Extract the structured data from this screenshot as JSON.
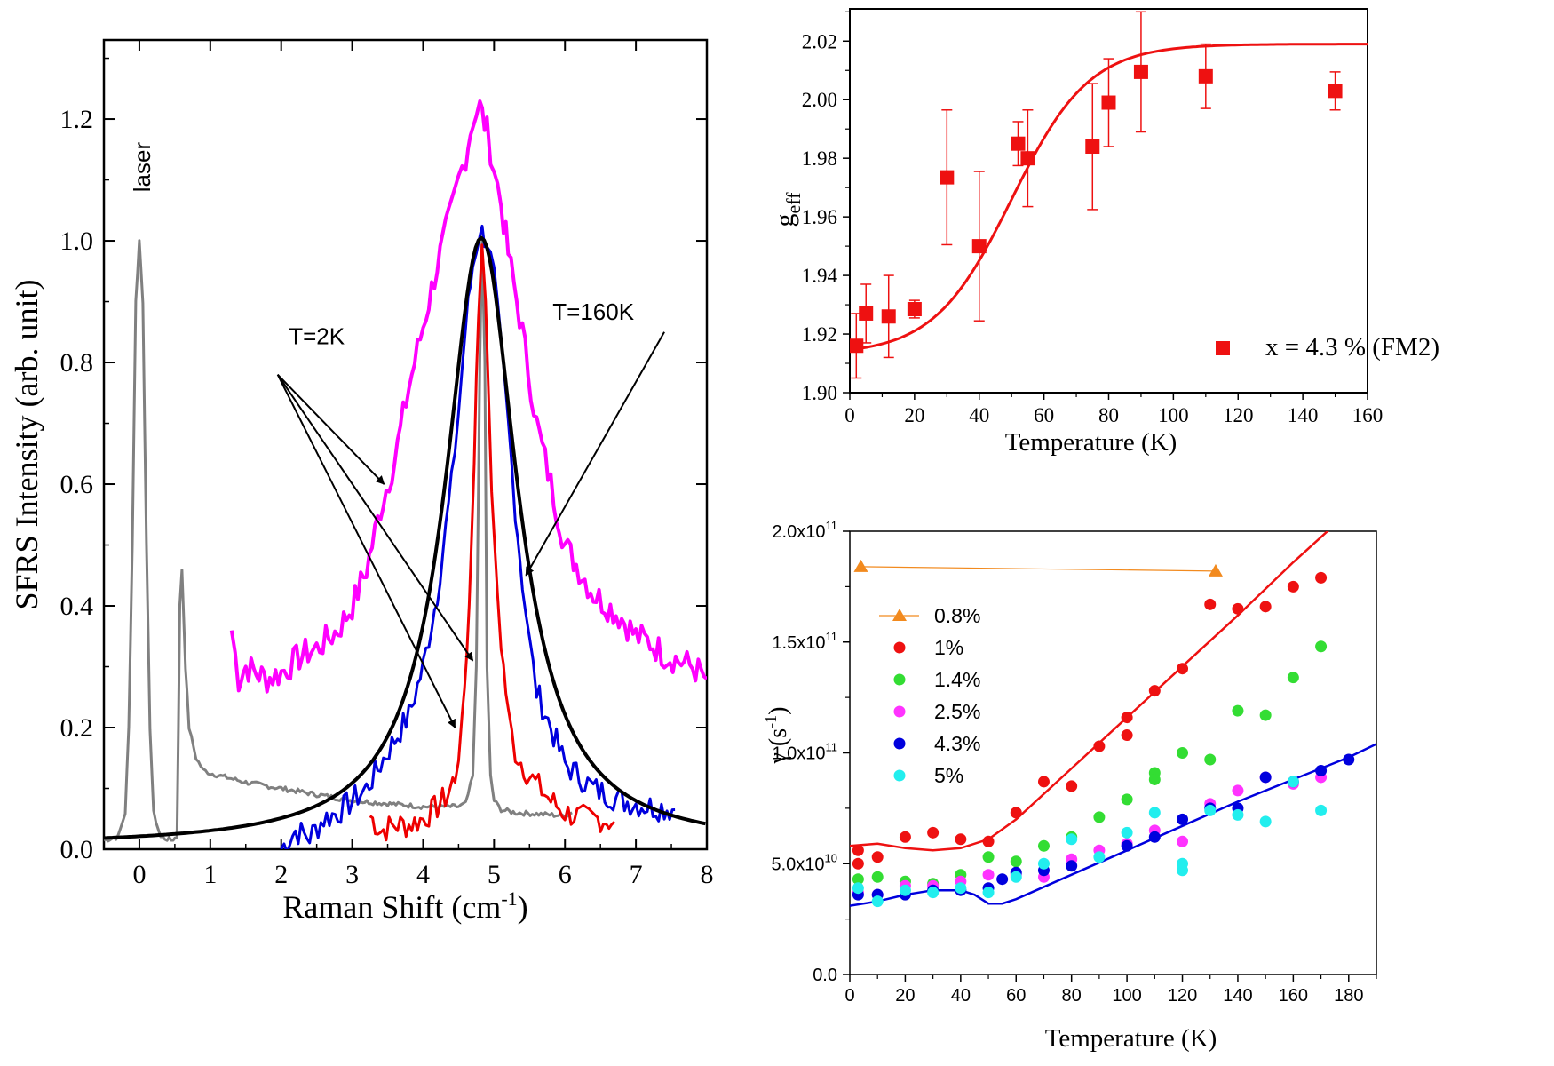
{
  "chart_data": [
    {
      "type": "line",
      "xlabel": "Raman Shift (cm",
      "xlabel_sup": "-1",
      "xlabel_close": ")",
      "ylabel": "SFRS Intensity (arb. unit)",
      "xlim": [
        -0.5,
        8
      ],
      "ylim": [
        0,
        1.33
      ],
      "xticks": [
        "0",
        "1",
        "2",
        "3",
        "4",
        "5",
        "6",
        "7",
        "8"
      ],
      "xtick_values": [
        0,
        1,
        2,
        3,
        4,
        5,
        6,
        7,
        8
      ],
      "yticks": [
        "0.0",
        "0.2",
        "0.4",
        "0.6",
        "0.8",
        "1.0",
        "1.2"
      ],
      "ytick_values": [
        0,
        0.2,
        0.4,
        0.6,
        0.8,
        1.0,
        1.2
      ],
      "annotations": [
        {
          "text": "laser",
          "x": 0.2,
          "y": 1.08,
          "rotate": true
        },
        {
          "text": "T=2K",
          "x": 2.5,
          "y": 0.83
        },
        {
          "text": "T=160K",
          "x": 6.4,
          "y": 0.87
        }
      ],
      "arrows": [
        {
          "from": [
            1.95,
            0.78
          ],
          "to": [
            3.45,
            0.6
          ]
        },
        {
          "from": [
            1.95,
            0.78
          ],
          "to": [
            4.7,
            0.31
          ]
        },
        {
          "from": [
            1.95,
            0.78
          ],
          "to": [
            4.45,
            0.2
          ]
        },
        {
          "from": [
            7.4,
            0.85
          ],
          "to": [
            5.45,
            0.45
          ]
        }
      ],
      "series": [
        {
          "id": "laser",
          "color": "#808080",
          "width": 3,
          "x": [
            -0.5,
            -0.3,
            -0.2,
            -0.15,
            -0.1,
            -0.05,
            0,
            0.05,
            0.1,
            0.15,
            0.2,
            0.3,
            0.45,
            0.53,
            0.55,
            0.57,
            0.6,
            0.65,
            0.7,
            0.8,
            0.9,
            1.0,
            1.5,
            2.0,
            2.5,
            3.0,
            3.5,
            4.0,
            4.3,
            4.5,
            4.6,
            4.7,
            4.75,
            4.8,
            4.83,
            4.87,
            4.9,
            4.95,
            5.0,
            5.1,
            5.3,
            5.6,
            6.0,
            6.1
          ],
          "y": [
            0.015,
            0.02,
            0.06,
            0.2,
            0.5,
            0.9,
            1.0,
            0.9,
            0.5,
            0.2,
            0.06,
            0.02,
            0.015,
            0.02,
            0.2,
            0.4,
            0.46,
            0.3,
            0.2,
            0.15,
            0.13,
            0.125,
            0.11,
            0.1,
            0.09,
            0.08,
            0.075,
            0.07,
            0.07,
            0.07,
            0.075,
            0.12,
            0.3,
            0.8,
            1.0,
            0.8,
            0.3,
            0.12,
            0.08,
            0.065,
            0.06,
            0.058,
            0.055,
            0.06
          ]
        },
        {
          "id": "magenta",
          "color": "#ff00ff",
          "width": 4,
          "x": [
            1.3,
            1.4,
            1.5,
            1.8,
            2.0,
            2.3,
            2.5,
            2.8,
            3.0,
            3.2,
            3.4,
            3.6,
            3.8,
            4.0,
            4.2,
            4.4,
            4.5,
            4.6,
            4.7,
            4.8,
            4.9,
            5.0,
            5.1,
            5.2,
            5.4,
            5.6,
            5.8,
            6.0,
            6.2,
            6.4,
            6.6,
            6.8,
            7.0,
            7.2,
            7.4,
            7.6,
            7.8,
            8.0
          ],
          "y": [
            0.36,
            0.28,
            0.3,
            0.28,
            0.29,
            0.32,
            0.33,
            0.36,
            0.4,
            0.46,
            0.56,
            0.64,
            0.76,
            0.86,
            0.96,
            1.05,
            1.1,
            1.14,
            1.2,
            1.22,
            1.18,
            1.12,
            1.06,
            0.98,
            0.85,
            0.7,
            0.6,
            0.5,
            0.46,
            0.42,
            0.4,
            0.38,
            0.35,
            0.34,
            0.32,
            0.31,
            0.3,
            0.28
          ]
        },
        {
          "id": "blue",
          "color": "#0000dd",
          "width": 3,
          "x": [
            2.0,
            2.2,
            2.4,
            2.6,
            2.8,
            3.0,
            3.2,
            3.4,
            3.6,
            3.8,
            4.0,
            4.2,
            4.4,
            4.5,
            4.6,
            4.7,
            4.8,
            4.9,
            5.0,
            5.1,
            5.2,
            5.3,
            5.4,
            5.5,
            5.6,
            5.8,
            6.0,
            6.2,
            6.4,
            6.6,
            6.8,
            7.0,
            7.2,
            7.4,
            7.55
          ],
          "y": [
            0.0,
            0.03,
            0.02,
            0.05,
            0.06,
            0.08,
            0.1,
            0.14,
            0.18,
            0.22,
            0.3,
            0.42,
            0.6,
            0.72,
            0.86,
            0.96,
            1.02,
            1.0,
            0.94,
            0.82,
            0.7,
            0.56,
            0.44,
            0.34,
            0.26,
            0.2,
            0.14,
            0.12,
            0.1,
            0.09,
            0.08,
            0.075,
            0.07,
            0.068,
            0.065
          ]
        },
        {
          "id": "red",
          "color": "#ee0000",
          "width": 3,
          "x": [
            3.25,
            3.4,
            3.6,
            3.8,
            4.0,
            4.2,
            4.35,
            4.45,
            4.55,
            4.65,
            4.72,
            4.78,
            4.83,
            4.88,
            4.93,
            5.0,
            5.1,
            5.2,
            5.3,
            5.5,
            5.8,
            6.0,
            6.3,
            6.5,
            6.7
          ],
          "y": [
            0.055,
            0.03,
            0.04,
            0.04,
            0.05,
            0.07,
            0.09,
            0.12,
            0.2,
            0.4,
            0.65,
            0.88,
            1.0,
            0.92,
            0.7,
            0.5,
            0.34,
            0.22,
            0.16,
            0.12,
            0.08,
            0.06,
            0.05,
            0.05,
            0.045
          ]
        },
        {
          "id": "fit",
          "color": "#000000",
          "width": 4,
          "lorentz": {
            "x0": 4.82,
            "amp": 1.0,
            "hwhm": 0.62,
            "offset": 0.005,
            "from": -0.5,
            "to": 8
          }
        }
      ]
    },
    {
      "type": "scatter",
      "xlabel": "Temperature (K)",
      "ylabel": "g",
      "ylabel_sub": "eff",
      "xlim": [
        0,
        160
      ],
      "ylim": [
        1.9,
        2.031
      ],
      "xticks": [
        "0",
        "20",
        "40",
        "60",
        "80",
        "100",
        "120",
        "140",
        "160"
      ],
      "xtick_values": [
        0,
        20,
        40,
        60,
        80,
        100,
        120,
        140,
        160
      ],
      "yticks": [
        "1.90",
        "1.92",
        "1.94",
        "1.96",
        "1.98",
        "2.00",
        "2.02"
      ],
      "ytick_values": [
        1.9,
        1.92,
        1.94,
        1.96,
        1.98,
        2.0,
        2.02
      ],
      "legend": "x = 4.3 % (FM2)",
      "color": "#ee1111",
      "points": [
        {
          "x": 2,
          "y": 1.916,
          "err": 0.011
        },
        {
          "x": 5,
          "y": 1.927,
          "err": 0.01
        },
        {
          "x": 12,
          "y": 1.926,
          "err": 0.014
        },
        {
          "x": 20,
          "y": 1.9285,
          "err": 0.003
        },
        {
          "x": 30,
          "y": 1.9735,
          "err": 0.023
        },
        {
          "x": 40,
          "y": 1.95,
          "err": 0.0255
        },
        {
          "x": 52,
          "y": 1.985,
          "err": 0.0075
        },
        {
          "x": 55,
          "y": 1.98,
          "err": 0.0165
        },
        {
          "x": 75,
          "y": 1.984,
          "err": 0.0215
        },
        {
          "x": 80,
          "y": 1.999,
          "err": 0.015
        },
        {
          "x": 90,
          "y": 2.0095,
          "err": 0.0205
        },
        {
          "x": 110,
          "y": 2.008,
          "err": 0.011
        },
        {
          "x": 150,
          "y": 2.003,
          "err": 0.0065
        }
      ],
      "fit": {
        "base": 1.913,
        "amp": 0.106,
        "center": 50,
        "width": 12
      }
    },
    {
      "type": "scatter",
      "xlabel": "Temperature (K)",
      "ylabel": "γ (s",
      "ylabel_sup": "-1",
      "ylabel_close": ")",
      "xlim": [
        0,
        190
      ],
      "ylim": [
        0,
        200000000000.0
      ],
      "xticks": [
        "0",
        "20",
        "40",
        "60",
        "80",
        "100",
        "120",
        "140",
        "160",
        "180"
      ],
      "xtick_values": [
        0,
        20,
        40,
        60,
        80,
        100,
        120,
        140,
        160,
        180
      ],
      "yticks": [
        "0.0",
        "5.0x10",
        "1.0x10",
        "1.5x10",
        "2.0x10"
      ],
      "ytick_exps": [
        "",
        "10",
        "11",
        "11",
        "11"
      ],
      "ytick_values": [
        0,
        50000000000.0,
        100000000000.0,
        150000000000.0,
        200000000000.0
      ],
      "series": [
        {
          "name": "0.8%",
          "color": "#f28a1e",
          "marker": "triangle",
          "x": [
            4,
            132
          ],
          "y": [
            184000000000.0,
            182000000000.0
          ],
          "line": true
        },
        {
          "name": "1%",
          "color": "#ee1111",
          "marker": "circle",
          "x": [
            3,
            3,
            10,
            20,
            30,
            40,
            50,
            60,
            70,
            80,
            90,
            100,
            100,
            110,
            120,
            130,
            140,
            150,
            160,
            170
          ],
          "y": [
            56000000000.0,
            50000000000.0,
            53000000000.0,
            62000000000.0,
            64000000000.0,
            61000000000.0,
            60000000000.0,
            73000000000.0,
            87000000000.0,
            85000000000.0,
            103000000000.0,
            116000000000.0,
            108000000000.0,
            128000000000.0,
            138000000000.0,
            167000000000.0,
            165000000000.0,
            166000000000.0,
            175000000000.0,
            179000000000.0
          ]
        },
        {
          "name": "1.4%",
          "color": "#33dd33",
          "marker": "circle",
          "x": [
            3,
            10,
            20,
            30,
            40,
            50,
            60,
            70,
            80,
            90,
            100,
            110,
            110,
            120,
            130,
            140,
            150,
            160,
            170
          ],
          "y": [
            43000000000.0,
            44000000000.0,
            42000000000.0,
            41000000000.0,
            45000000000.0,
            53000000000.0,
            51000000000.0,
            58000000000.0,
            62000000000.0,
            71000000000.0,
            79000000000.0,
            91000000000.0,
            88000000000.0,
            100000000000.0,
            97000000000.0,
            119000000000.0,
            117000000000.0,
            134000000000.0,
            148000000000.0
          ]
        },
        {
          "name": "2.5%",
          "color": "#ff33ff",
          "marker": "circle",
          "x": [
            3,
            10,
            20,
            30,
            40,
            50,
            60,
            70,
            80,
            90,
            100,
            110,
            120,
            130,
            140,
            150,
            160,
            170
          ],
          "y": [
            37000000000.0,
            36000000000.0,
            40000000000.0,
            40000000000.0,
            42000000000.0,
            45000000000.0,
            45000000000.0,
            44000000000.0,
            52000000000.0,
            56000000000.0,
            59000000000.0,
            65000000000.0,
            60000000000.0,
            77000000000.0,
            83000000000.0,
            89000000000.0,
            86000000000.0,
            89000000000.0
          ]
        },
        {
          "name": "4.3%",
          "color": "#0000dd",
          "marker": "circle",
          "x": [
            3,
            10,
            20,
            30,
            40,
            50,
            55,
            60,
            70,
            80,
            100,
            110,
            120,
            130,
            140,
            150,
            160,
            170,
            180
          ],
          "y": [
            36000000000.0,
            36000000000.0,
            36000000000.0,
            38000000000.0,
            38000000000.0,
            39000000000.0,
            43000000000.0,
            46000000000.0,
            47000000000.0,
            49000000000.0,
            58000000000.0,
            62000000000.0,
            70000000000.0,
            75000000000.0,
            75000000000.0,
            89000000000.0,
            87000000000.0,
            92000000000.0,
            97000000000.0
          ]
        },
        {
          "name": "5%",
          "color": "#22eeee",
          "marker": "circle",
          "x": [
            3,
            10,
            20,
            30,
            40,
            50,
            60,
            70,
            80,
            90,
            100,
            110,
            120,
            120,
            130,
            140,
            150,
            160,
            170
          ],
          "y": [
            39000000000.0,
            33000000000.0,
            38000000000.0,
            37000000000.0,
            39000000000.0,
            37000000000.0,
            44000000000.0,
            50000000000.0,
            61000000000.0,
            53000000000.0,
            64000000000.0,
            73000000000.0,
            50000000000.0,
            47000000000.0,
            74000000000.0,
            72000000000.0,
            69000000000.0,
            87000000000.0,
            74000000000.0
          ]
        }
      ],
      "fit_lines": [
        {
          "color": "#ee1111",
          "x": [
            0,
            10,
            20,
            30,
            40,
            50,
            60,
            80,
            100,
            120,
            140,
            160,
            175
          ],
          "y": [
            58000000000.0,
            59000000000.0,
            57000000000.0,
            56000000000.0,
            57000000000.0,
            61000000000.0,
            70000000000.0,
            93000000000.0,
            116000000000.0,
            139000000000.0,
            162000000000.0,
            186000000000.0,
            203000000000.0
          ]
        },
        {
          "color": "#0000dd",
          "x": [
            0,
            10,
            20,
            30,
            40,
            45,
            50,
            55,
            60,
            80,
            100,
            120,
            140,
            160,
            180,
            190
          ],
          "y": [
            31000000000.0,
            33000000000.0,
            36000000000.0,
            38000000000.0,
            38000000000.0,
            36000000000.0,
            32000000000.0,
            32000000000.0,
            34000000000.0,
            45000000000.0,
            56000000000.0,
            67000000000.0,
            78000000000.0,
            88000000000.0,
            98000000000.0,
            104000000000.0
          ]
        }
      ]
    }
  ]
}
